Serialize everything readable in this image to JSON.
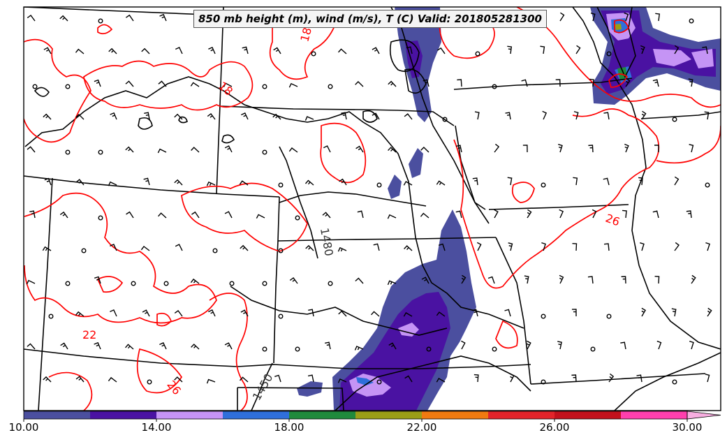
{
  "title": "850 mb height (m), wind (m/s), T (C) Valid: 201805281300",
  "contour_labels": {
    "height": [
      "1480",
      "1450"
    ],
    "temperature": [
      "18",
      "18",
      "22",
      "26",
      "26"
    ]
  },
  "colorbar": {
    "tick_labels": [
      "10.00",
      "14.00",
      "18.00",
      "22.00",
      "26.00",
      "30.00"
    ],
    "colors": [
      "#4b4f9f",
      "#4a12a2",
      "#c594f5",
      "#2f6fdb",
      "#1f8a3c",
      "#9a9e16",
      "#f07a10",
      "#e2242a",
      "#c2111c",
      "#ff3fae",
      "#f7aee0"
    ]
  },
  "colors": {
    "temperature_contour": "#ff0000",
    "height_contour": "#000000",
    "boundaries": "#000000",
    "frame": "#000000"
  }
}
